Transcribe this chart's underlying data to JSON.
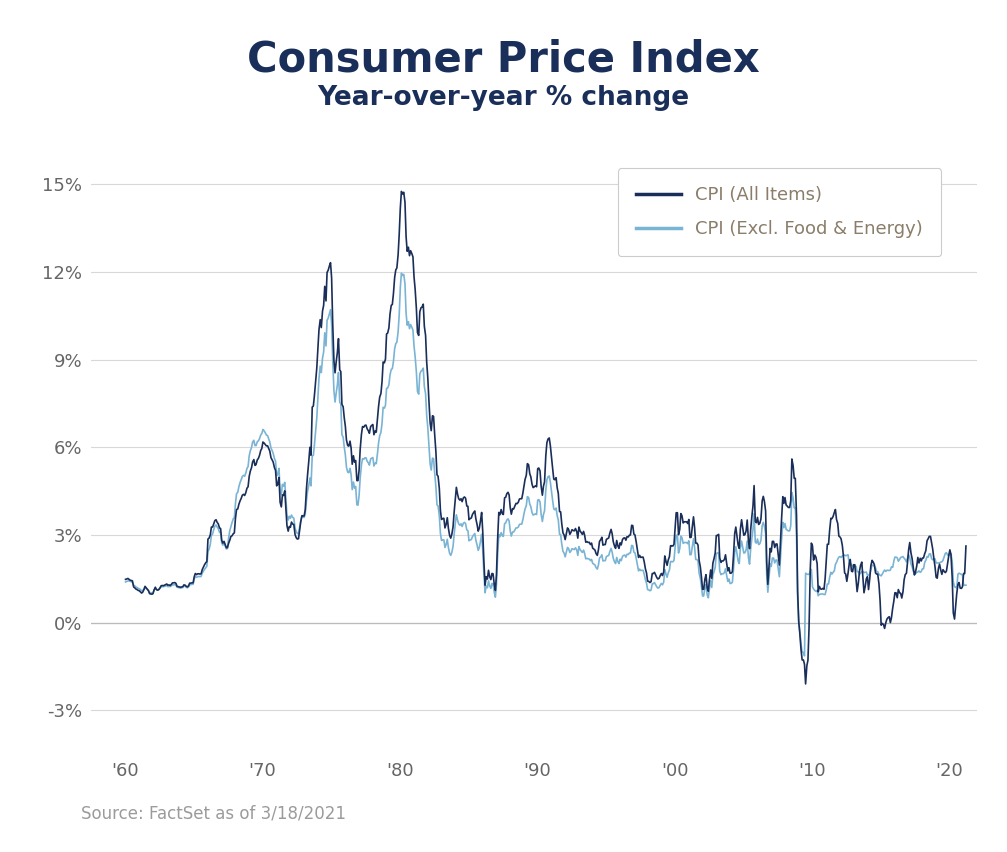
{
  "title": "Consumer Price Index",
  "subtitle": "Year-over-year % change",
  "source_text": "Source: FactSet as of 3/18/2021",
  "title_color": "#1a2e5a",
  "subtitle_color": "#1a2e5a",
  "source_color": "#9b9b9b",
  "line1_color": "#1a2e5a",
  "line2_color": "#7ab4d4",
  "line1_label": "CPI (All Items)",
  "line2_label": "CPI (Excl. Food & Energy)",
  "legend_text_color": "#8a7d6a",
  "ylim": [
    -4.5,
    16.5
  ],
  "yticks": [
    -3,
    0,
    3,
    6,
    9,
    12,
    15
  ],
  "ytick_labels": [
    "-3%",
    "0%",
    "3%",
    "6%",
    "9%",
    "12%",
    "15%"
  ],
  "xtick_labels": [
    "'60",
    "'70",
    "'80",
    "'90",
    "'00",
    "'10",
    "'20"
  ],
  "xtick_positions": [
    1960,
    1970,
    1980,
    1990,
    2000,
    2010,
    2020
  ],
  "background_color": "#ffffff",
  "grid_color": "#d8d8d8",
  "title_fontsize": 30,
  "subtitle_fontsize": 19,
  "axis_fontsize": 13,
  "legend_fontsize": 13,
  "source_fontsize": 12,
  "line_width": 1.2
}
